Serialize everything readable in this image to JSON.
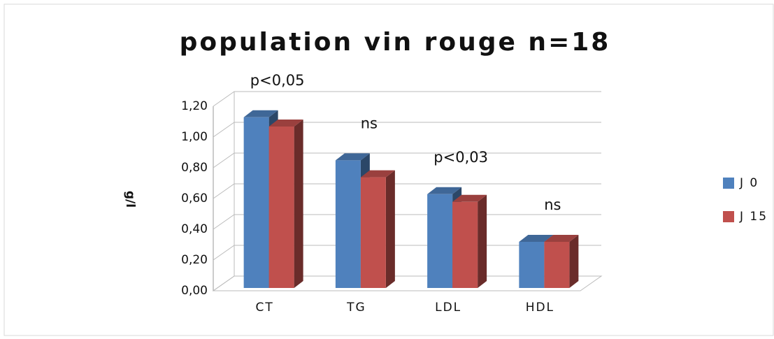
{
  "chart_data": {
    "type": "bar3d",
    "title": "population vin rouge n=18",
    "y_label": "g/l",
    "categories": [
      "CT",
      "TG",
      "LDL",
      "HDL"
    ],
    "series": [
      {
        "name": "J 0",
        "color": "#4f81bd",
        "values": [
          1.11,
          0.83,
          0.61,
          0.3
        ]
      },
      {
        "name": "J 15",
        "color": "#c0504d",
        "values": [
          1.05,
          0.72,
          0.56,
          0.3
        ]
      }
    ],
    "annotations": [
      "p<0,05",
      "ns",
      "p<0,03",
      "ns"
    ],
    "ylim": [
      0,
      1.2
    ],
    "yticks": [
      {
        "value": 0,
        "label": "0,00"
      },
      {
        "value": 0.2,
        "label": "0,20"
      },
      {
        "value": 0.4,
        "label": "0,40"
      },
      {
        "value": 0.6,
        "label": "0,60"
      },
      {
        "value": 0.8,
        "label": "0,80"
      },
      {
        "value": 1.0,
        "label": "1,00"
      },
      {
        "value": 1.2,
        "label": "1,20"
      }
    ],
    "grid": true,
    "legend": "right"
  }
}
